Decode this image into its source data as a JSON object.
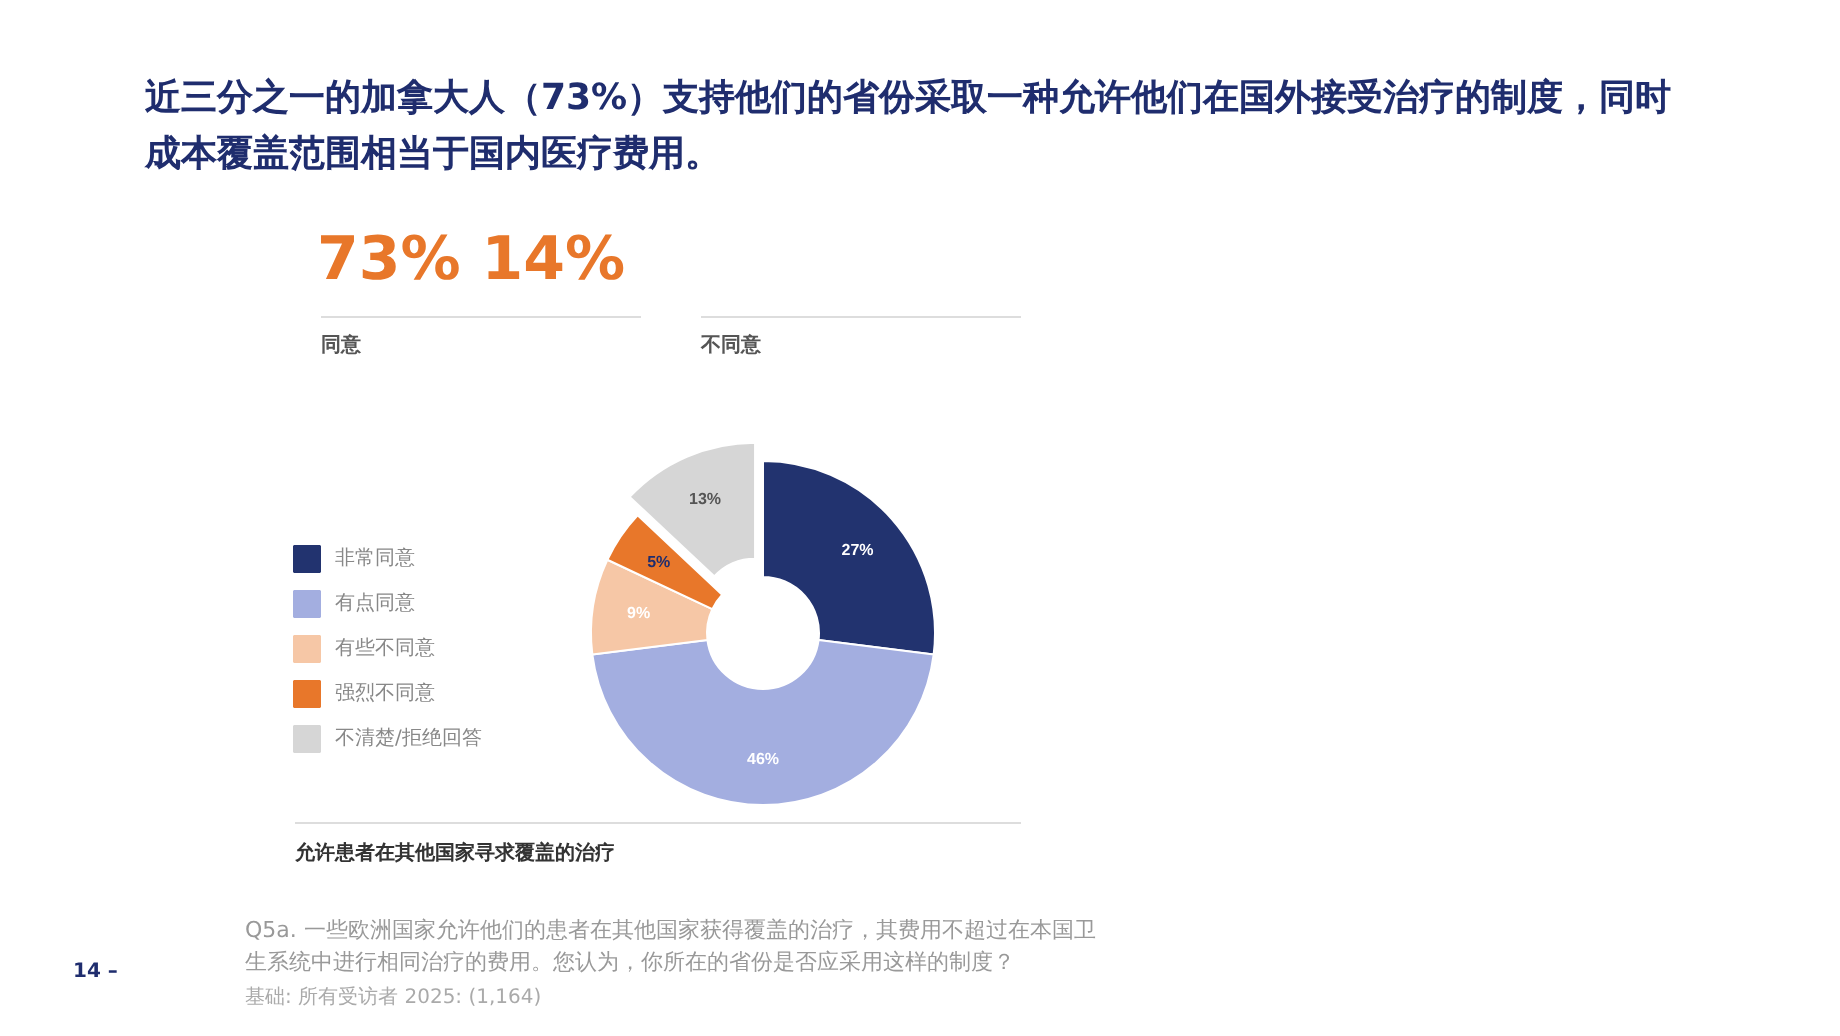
{
  "chart_data": {
    "type": "donut",
    "title": "近三分之一的加拿大人（73%）支持他们的省份采取一种允许他们在国外接受治疗的制度，同时成本覆盖范围相当于国内医疗费用。",
    "subtitle": "允许患者在其他国家寻求覆盖的治疗",
    "categories": [
      "非常同意",
      "有点同意",
      "有些不同意",
      "强烈不同意",
      "不清楚/拒绝回答"
    ],
    "values": [
      27,
      46,
      9,
      5,
      13
    ],
    "colors": [
      "#22336f",
      "#a3aee0",
      "#f6c7a6",
      "#e8772a",
      "#d6d6d6"
    ],
    "value_labels": [
      "27%",
      "46%",
      "9%",
      "5%",
      "13%"
    ],
    "legend": "left",
    "annotations": [
      "73% 14%",
      "同意",
      "不同意",
      "Q5a. 一些欧洲国家允许他们的患者在其他国家获得覆盖的治疗，其费用不超过在本国卫生系统中进行相同治疗的费用。您认为，你所在的省份是否应采用这样的制度？",
      "基础: 所有受访者 2025: (1,164)",
      "14 –"
    ]
  }
}
